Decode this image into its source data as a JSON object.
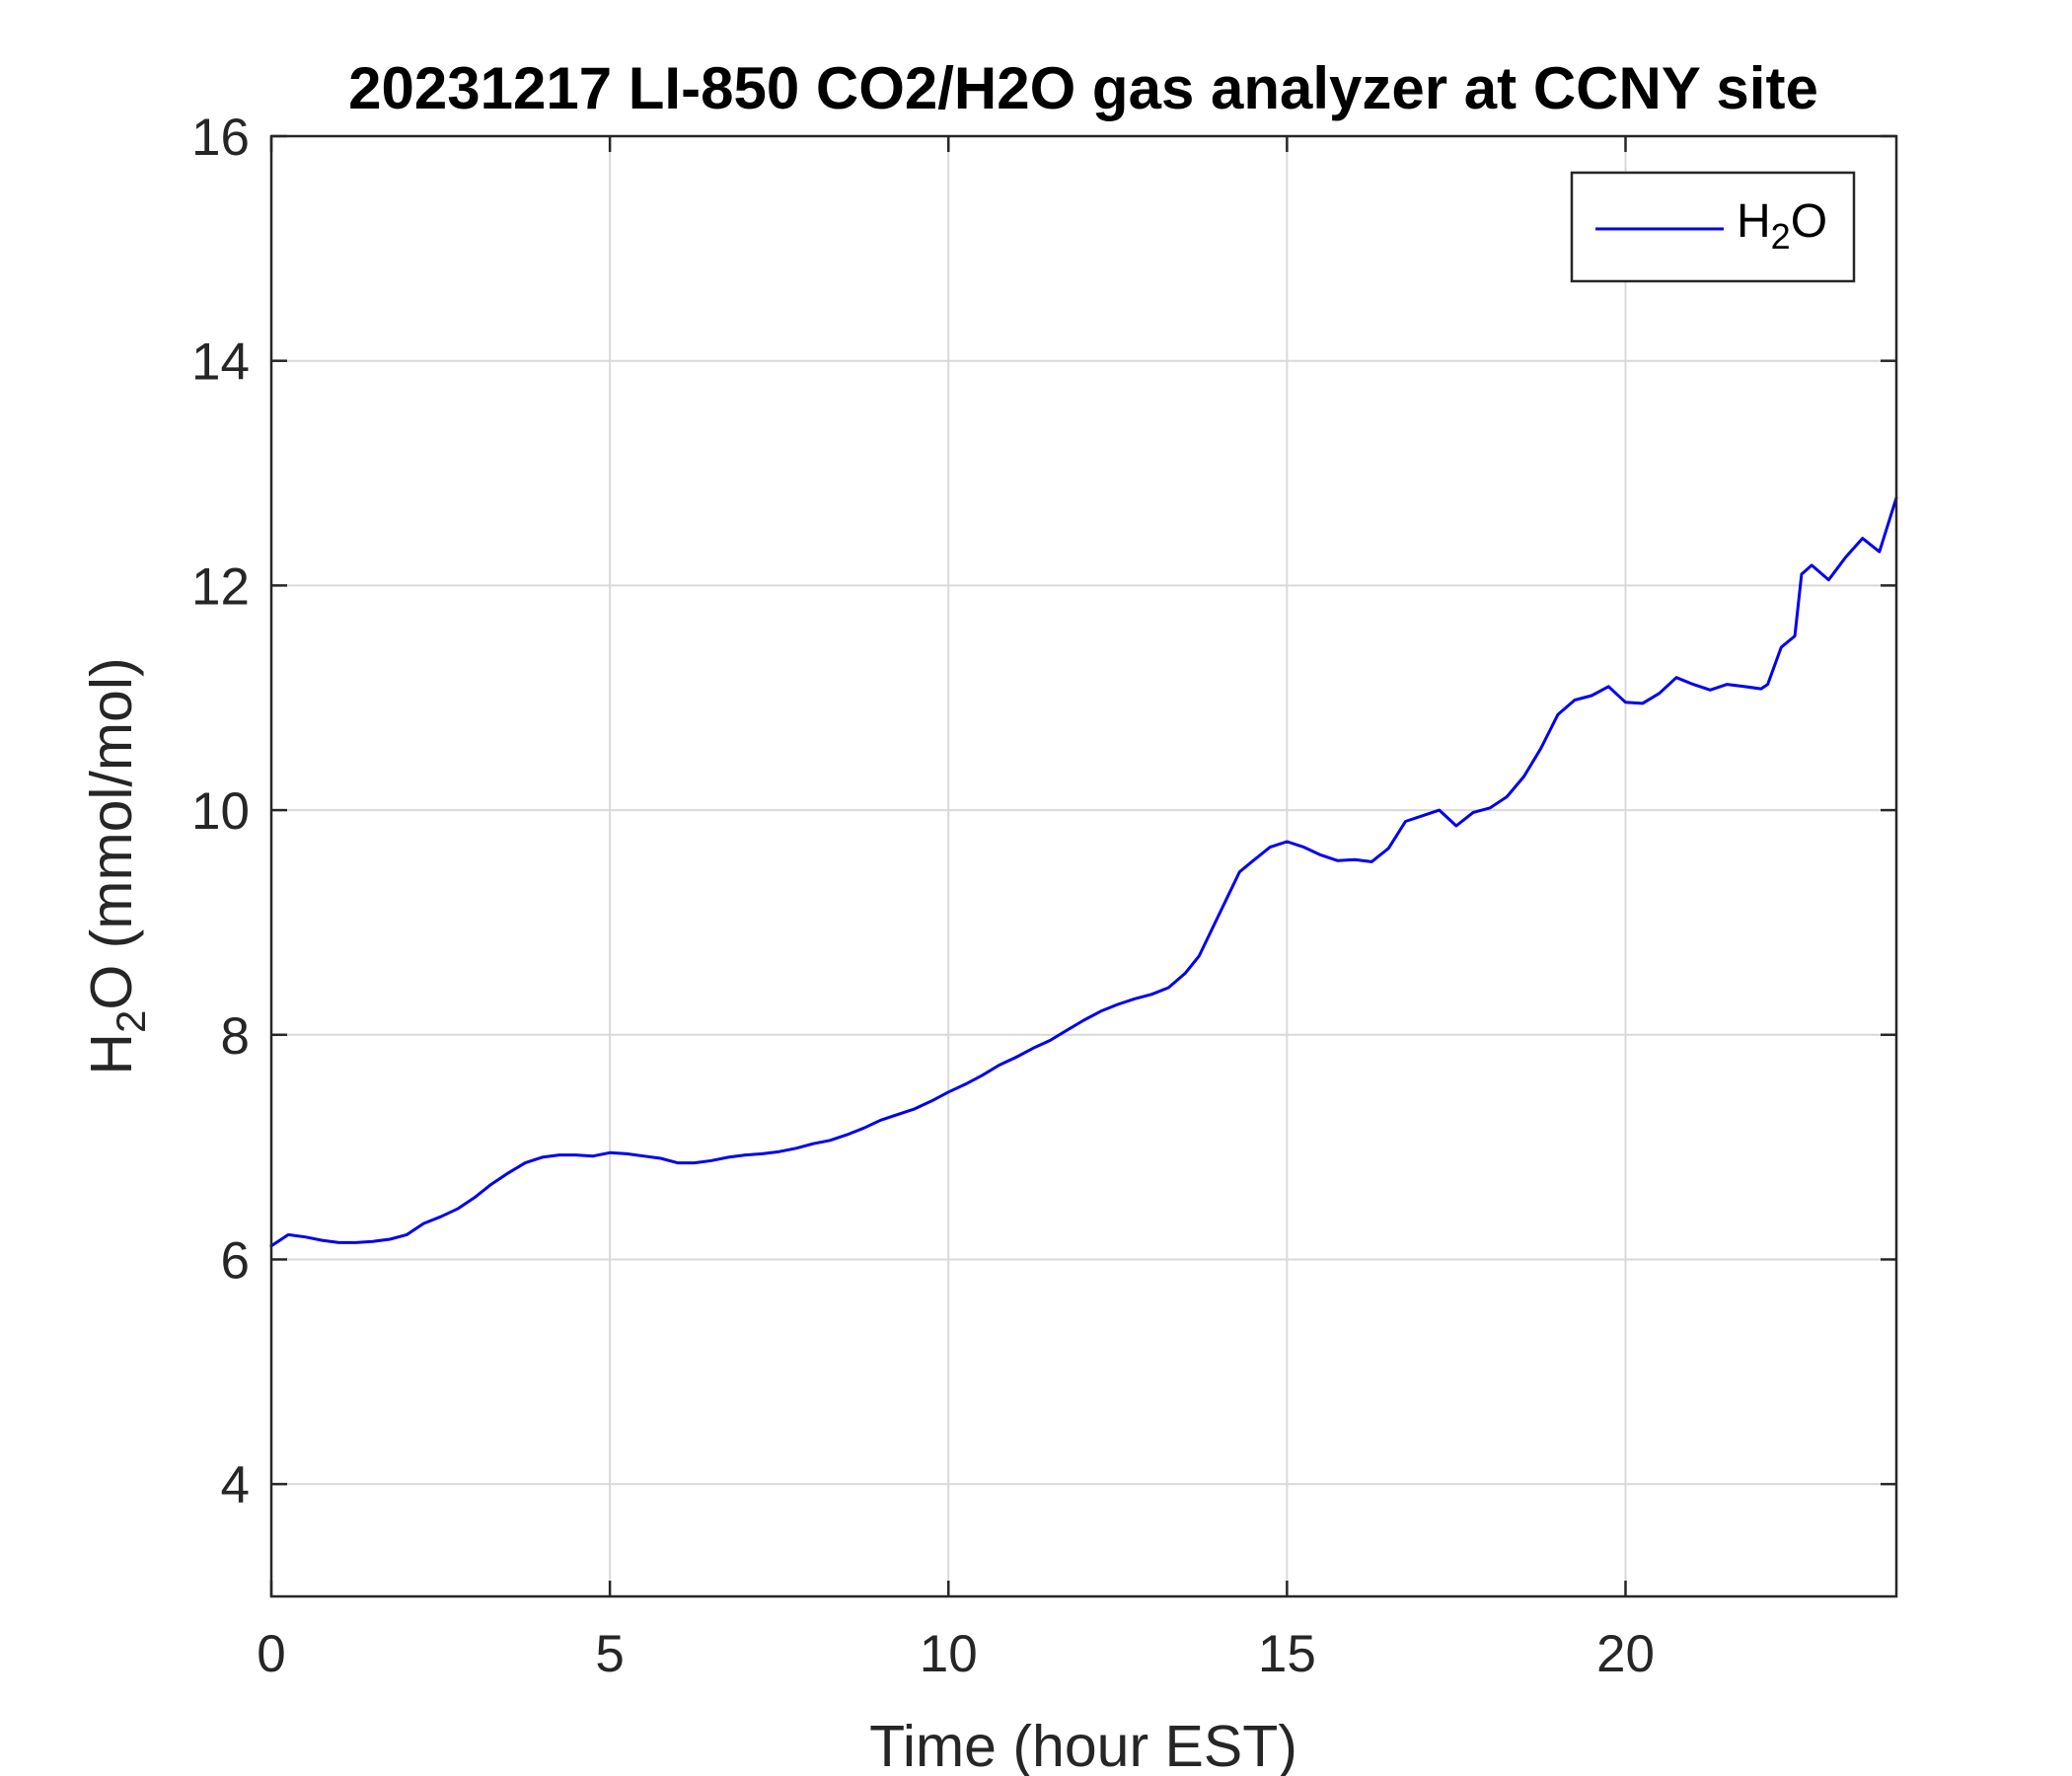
{
  "chart_data": {
    "type": "line",
    "title": "20231217 LI-850 CO2/H2O gas analyzer at CCNY site",
    "xlabel": "Time (hour EST)",
    "ylabel": {
      "main": "H",
      "sub": "2",
      "rest": "O (mmol/mol)"
    },
    "xlim": [
      0,
      24
    ],
    "ylim": [
      3,
      16
    ],
    "xticks": [
      0,
      5,
      10,
      15,
      20
    ],
    "yticks": [
      4,
      6,
      8,
      10,
      12,
      14,
      16
    ],
    "grid": true,
    "legend": {
      "position": "top-right"
    },
    "series": [
      {
        "name": {
          "main": "H",
          "sub": "2",
          "rest": "O"
        },
        "color": "#0000ee",
        "x": [
          0,
          0.25,
          0.5,
          0.75,
          1.0,
          1.25,
          1.5,
          1.75,
          2.0,
          2.25,
          2.5,
          2.75,
          3.0,
          3.25,
          3.5,
          3.75,
          4.0,
          4.25,
          4.5,
          4.75,
          5.0,
          5.25,
          5.5,
          5.75,
          6.0,
          6.25,
          6.5,
          6.75,
          7.0,
          7.25,
          7.5,
          7.75,
          8.0,
          8.25,
          8.5,
          8.75,
          9.0,
          9.25,
          9.5,
          9.75,
          10.0,
          10.25,
          10.5,
          10.75,
          11.0,
          11.25,
          11.5,
          11.75,
          12.0,
          12.25,
          12.5,
          12.75,
          13.0,
          13.25,
          13.5,
          13.7,
          13.9,
          14.1,
          14.3,
          14.5,
          14.75,
          15.0,
          15.25,
          15.5,
          15.75,
          16.0,
          16.25,
          16.5,
          16.75,
          17.0,
          17.25,
          17.5,
          17.75,
          18.0,
          18.25,
          18.5,
          18.75,
          19.0,
          19.25,
          19.5,
          19.75,
          20.0,
          20.25,
          20.5,
          20.75,
          21.0,
          21.25,
          21.5,
          21.75,
          22.0,
          22.1,
          22.3,
          22.5,
          22.6,
          22.75,
          23.0,
          23.25,
          23.5,
          23.75,
          24.0
        ],
        "y": [
          6.12,
          6.22,
          6.2,
          6.17,
          6.15,
          6.15,
          6.16,
          6.18,
          6.22,
          6.32,
          6.38,
          6.45,
          6.55,
          6.67,
          6.77,
          6.86,
          6.91,
          6.93,
          6.93,
          6.92,
          6.95,
          6.94,
          6.92,
          6.9,
          6.86,
          6.86,
          6.88,
          6.91,
          6.93,
          6.94,
          6.96,
          6.99,
          7.03,
          7.06,
          7.11,
          7.17,
          7.24,
          7.29,
          7.34,
          7.41,
          7.49,
          7.56,
          7.64,
          7.73,
          7.8,
          7.88,
          7.95,
          8.04,
          8.13,
          8.21,
          8.27,
          8.32,
          8.36,
          8.42,
          8.55,
          8.7,
          8.95,
          9.2,
          9.45,
          9.55,
          9.67,
          9.72,
          9.67,
          9.6,
          9.55,
          9.56,
          9.54,
          9.66,
          9.9,
          9.95,
          10.0,
          9.86,
          9.98,
          10.02,
          10.12,
          10.3,
          10.55,
          10.85,
          10.98,
          11.02,
          11.1,
          10.96,
          10.95,
          11.04,
          11.18,
          11.12,
          11.07,
          11.12,
          11.1,
          11.08,
          11.12,
          11.45,
          11.55,
          12.1,
          12.18,
          12.05,
          12.25,
          12.42,
          12.3,
          12.78
        ]
      }
    ]
  }
}
